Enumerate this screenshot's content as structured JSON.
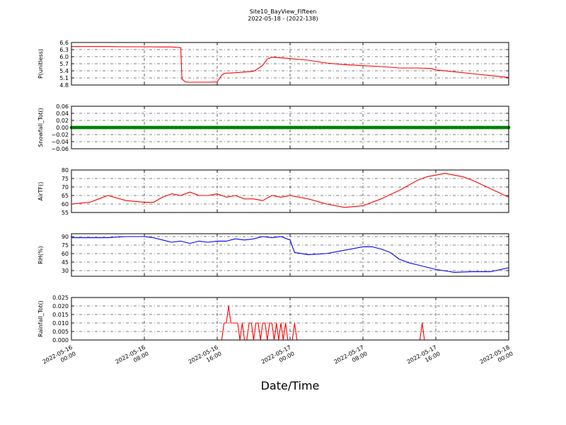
{
  "figure": {
    "title": "Site10_BayView_Fifteen",
    "subtitle": "2022-05-18 - (2022-138)",
    "xlabel": "Date/Time"
  },
  "chart_data": [
    {
      "type": "line",
      "ylabel": "P(unitless)",
      "ylim": [
        4.8,
        6.6
      ],
      "yticks": [
        "6.6",
        "6.3",
        "6.0",
        "5.7",
        "5.4",
        "5.1",
        "4.8"
      ],
      "ytick_values": [
        6.6,
        6.3,
        6.0,
        5.7,
        5.4,
        5.1,
        4.8
      ],
      "color": "#ff0000",
      "grid": true,
      "series": [
        {
          "x": [
            "2022-05-16 00:00",
            "2022-05-16 02:00",
            "2022-05-16 03:00",
            "2022-05-16 03:30",
            "2022-05-16 04:00",
            "2022-05-16 06:00",
            "2022-05-16 08:00",
            "2022-05-16 10:00",
            "2022-05-16 11:00",
            "2022-05-16 12:00",
            "2022-05-16 12:08",
            "2022-05-16 12:15",
            "2022-05-16 12:30",
            "2022-05-16 13:00",
            "2022-05-16 15:00",
            "2022-05-16 16:00",
            "2022-05-16 16:30",
            "2022-05-16 16:45",
            "2022-05-16 17:00",
            "2022-05-16 18:00",
            "2022-05-16 19:00",
            "2022-05-16 20:00",
            "2022-05-16 20:30",
            "2022-05-16 21:00",
            "2022-05-16 21:30",
            "2022-05-16 22:00",
            "2022-05-17 00:00",
            "2022-05-17 02:00",
            "2022-05-17 04:00",
            "2022-05-17 06:00",
            "2022-05-17 08:00",
            "2022-05-17 10:00",
            "2022-05-17 12:00",
            "2022-05-17 14:00",
            "2022-05-17 15:30",
            "2022-05-17 16:00",
            "2022-05-17 18:00",
            "2022-05-17 20:00",
            "2022-05-17 22:00",
            "2022-05-18 00:00"
          ],
          "y": [
            6.43,
            6.43,
            6.43,
            6.43,
            6.43,
            6.42,
            6.42,
            6.41,
            6.41,
            6.38,
            5.04,
            5.02,
            4.93,
            4.92,
            4.92,
            4.93,
            5.22,
            5.28,
            5.3,
            5.32,
            5.35,
            5.38,
            5.5,
            5.64,
            5.9,
            5.98,
            5.92,
            5.85,
            5.73,
            5.66,
            5.62,
            5.58,
            5.52,
            5.52,
            5.5,
            5.44,
            5.36,
            5.28,
            5.2,
            5.12
          ]
        }
      ]
    },
    {
      "type": "scatter",
      "ylabel": "Snowfall_Tot()",
      "ylim": [
        -0.06,
        0.06
      ],
      "yticks": [
        "0.06",
        "0.04",
        "0.02",
        "0.00",
        "−0.02",
        "−0.04",
        "−0.06"
      ],
      "ytick_values": [
        0.06,
        0.04,
        0.02,
        0.0,
        -0.02,
        -0.04,
        -0.06
      ],
      "color": "#008000",
      "grid": true,
      "series": [
        {
          "x_start": "2022-05-16 00:00",
          "x_end": "2022-05-18 00:00",
          "y": 0.0
        }
      ]
    },
    {
      "type": "line",
      "ylabel": "AirTF()",
      "ylim": [
        55,
        80
      ],
      "yticks": [
        "80",
        "75",
        "70",
        "65",
        "60",
        "55"
      ],
      "ytick_values": [
        80,
        75,
        70,
        65,
        60,
        55
      ],
      "color": "#ff0000",
      "grid": true,
      "series": [
        {
          "x": [
            "2022-05-16 00:00",
            "2022-05-16 02:00",
            "2022-05-16 03:00",
            "2022-05-16 04:00",
            "2022-05-16 06:00",
            "2022-05-16 08:00",
            "2022-05-16 09:00",
            "2022-05-16 10:00",
            "2022-05-16 11:00",
            "2022-05-16 12:00",
            "2022-05-16 13:00",
            "2022-05-16 14:00",
            "2022-05-16 15:00",
            "2022-05-16 16:00",
            "2022-05-16 17:00",
            "2022-05-16 18:00",
            "2022-05-16 19:00",
            "2022-05-16 20:00",
            "2022-05-16 21:00",
            "2022-05-16 22:00",
            "2022-05-16 23:00",
            "2022-05-17 00:00",
            "2022-05-17 02:00",
            "2022-05-17 04:00",
            "2022-05-17 06:00",
            "2022-05-17 08:00",
            "2022-05-17 10:00",
            "2022-05-17 12:00",
            "2022-05-17 14:00",
            "2022-05-17 15:00",
            "2022-05-17 16:00",
            "2022-05-17 17:00",
            "2022-05-17 18:00",
            "2022-05-17 19:00",
            "2022-05-17 20:00",
            "2022-05-17 22:00",
            "2022-05-18 00:00"
          ],
          "y": [
            60,
            61,
            63,
            65,
            62,
            61,
            61,
            64,
            66,
            65,
            67,
            65,
            65,
            66,
            64,
            65,
            63,
            63,
            62,
            65,
            64,
            65,
            63,
            60,
            58,
            59,
            63,
            68,
            74,
            76,
            77,
            78,
            77,
            76,
            74,
            69,
            64
          ]
        }
      ]
    },
    {
      "type": "line",
      "ylabel": "RH(%)",
      "ylim": [
        20,
        95
      ],
      "yticks": [
        "90",
        "75",
        "60",
        "45",
        "30"
      ],
      "ytick_values": [
        90,
        75,
        60,
        45,
        30
      ],
      "color": "#0000ff",
      "grid": true,
      "series": [
        {
          "x": [
            "2022-05-16 00:00",
            "2022-05-16 02:00",
            "2022-05-16 04:00",
            "2022-05-16 06:00",
            "2022-05-16 08:00",
            "2022-05-16 09:00",
            "2022-05-16 10:00",
            "2022-05-16 11:00",
            "2022-05-16 12:00",
            "2022-05-16 13:00",
            "2022-05-16 14:00",
            "2022-05-16 15:00",
            "2022-05-16 16:00",
            "2022-05-16 17:00",
            "2022-05-16 18:00",
            "2022-05-16 19:00",
            "2022-05-16 20:00",
            "2022-05-16 21:00",
            "2022-05-16 22:00",
            "2022-05-16 23:00",
            "2022-05-17 00:00",
            "2022-05-17 00:30",
            "2022-05-17 02:00",
            "2022-05-17 04:00",
            "2022-05-17 06:00",
            "2022-05-17 08:00",
            "2022-05-17 09:00",
            "2022-05-17 10:00",
            "2022-05-17 11:00",
            "2022-05-17 12:00",
            "2022-05-17 13:00",
            "2022-05-17 14:00",
            "2022-05-17 16:00",
            "2022-05-17 18:00",
            "2022-05-17 20:00",
            "2022-05-17 22:00",
            "2022-05-18 00:00"
          ],
          "y": [
            88,
            88,
            88,
            90,
            90,
            88,
            84,
            80,
            82,
            78,
            82,
            80,
            82,
            82,
            86,
            84,
            86,
            90,
            88,
            90,
            84,
            62,
            58,
            60,
            66,
            72,
            72,
            68,
            62,
            50,
            44,
            40,
            32,
            27,
            28,
            28,
            35
          ]
        }
      ]
    },
    {
      "type": "line",
      "ylabel": "Rainfall_Tot()",
      "ylim": [
        0.0,
        0.025
      ],
      "yticks": [
        "0.025",
        "0.020",
        "0.015",
        "0.010",
        "0.005",
        "0.000"
      ],
      "ytick_values": [
        0.025,
        0.02,
        0.015,
        0.01,
        0.005,
        0.0
      ],
      "color": "#ff0000",
      "grid": true,
      "series": [
        {
          "x": [
            "2022-05-16 00:00",
            "2022-05-16 16:30",
            "2022-05-16 16:45",
            "2022-05-16 17:00",
            "2022-05-16 17:15",
            "2022-05-16 17:30",
            "2022-05-16 18:15",
            "2022-05-16 18:30",
            "2022-05-16 18:45",
            "2022-05-16 19:00",
            "2022-05-16 19:15",
            "2022-05-16 19:30",
            "2022-05-16 19:45",
            "2022-05-16 20:00",
            "2022-05-16 20:15",
            "2022-05-16 20:30",
            "2022-05-16 20:45",
            "2022-05-16 21:00",
            "2022-05-16 21:15",
            "2022-05-16 21:30",
            "2022-05-16 21:45",
            "2022-05-16 22:00",
            "2022-05-16 22:15",
            "2022-05-16 22:30",
            "2022-05-16 22:45",
            "2022-05-16 23:00",
            "2022-05-16 23:15",
            "2022-05-16 23:30",
            "2022-05-16 23:45",
            "2022-05-17 00:00",
            "2022-05-17 00:15",
            "2022-05-17 00:30",
            "2022-05-17 00:45",
            "2022-05-17 01:00",
            "2022-05-17 01:15",
            "2022-05-17 01:30",
            "2022-05-17 14:15",
            "2022-05-17 14:30",
            "2022-05-17 14:45",
            "2022-05-18 00:00"
          ],
          "y": [
            0,
            0,
            0.01,
            0.01,
            0.02,
            0.01,
            0.01,
            0,
            0.01,
            0,
            0,
            0.01,
            0.01,
            0,
            0.01,
            0.01,
            0,
            0.01,
            0.01,
            0,
            0.01,
            0.01,
            0,
            0.01,
            0,
            0.01,
            0,
            0.01,
            0,
            0,
            0,
            0.01,
            0,
            0,
            0,
            0,
            0,
            0.01,
            0,
            0
          ]
        }
      ]
    }
  ],
  "x_axis": {
    "range": [
      "2022-05-16 00:00",
      "2022-05-18 00:00"
    ],
    "ticks": [
      {
        "value": "2022-05-16 00:00",
        "line1": "2022-05-16",
        "line2": "00:00"
      },
      {
        "value": "2022-05-16 08:00",
        "line1": "2022-05-16",
        "line2": "08:00"
      },
      {
        "value": "2022-05-16 16:00",
        "line1": "2022-05-16",
        "line2": "16:00"
      },
      {
        "value": "2022-05-17 00:00",
        "line1": "2022-05-17",
        "line2": "00:00"
      },
      {
        "value": "2022-05-17 08:00",
        "line1": "2022-05-17",
        "line2": "08:00"
      },
      {
        "value": "2022-05-17 16:00",
        "line1": "2022-05-17",
        "line2": "16:00"
      },
      {
        "value": "2022-05-18 00:00",
        "line1": "2022-05-18",
        "line2": "00:00"
      }
    ]
  }
}
